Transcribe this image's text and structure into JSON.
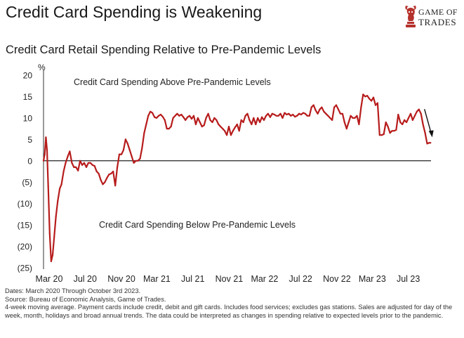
{
  "header": {
    "title": "Credit Card Spending is Weakening",
    "subtitle": "Credit Card Retail Spending Relative to Pre-Pandemic Levels"
  },
  "logo": {
    "line1": "GAME OF",
    "line2": "TRADES",
    "icon": "bull-chess-knight-icon",
    "color": "#b5312c"
  },
  "footnotes": {
    "line1": "Dates: March 2020 Through October 3rd 2023.",
    "line2": "Source: Bureau of Economic Analysis, Game of Trades.",
    "line3": "4-week moving average. Payment cards include credit, debit and gift cards. Includes food services; excludes gas stations. Sales are adjusted for day of the week, month, holidays and broad annual trends. The data could be interpreted as changes in spending relative to expected levels prior to the pandemic."
  },
  "chart_data": {
    "type": "line",
    "title": "Credit Card Retail Spending Relative to Pre-Pandemic Levels",
    "ylabel": "%",
    "xlabel": "",
    "ylim": [
      -25,
      20
    ],
    "xlim": [
      "2020-03-01",
      "2023-10-05"
    ],
    "y_ticks": [
      20,
      15,
      10,
      5,
      0,
      -5,
      -10,
      -15,
      -20,
      -25
    ],
    "y_tick_labels": [
      "20",
      "15",
      "10",
      "5",
      "0",
      "(5)",
      "(10)",
      "(15)",
      "(20)",
      "(25)"
    ],
    "x_tick_labels": [
      "Mar 20",
      "Jul 20",
      "Nov 20",
      "Mar 21",
      "Jul 21",
      "Nov 21",
      "Mar 22",
      "Jul 22",
      "Nov 22",
      "Mar 23",
      "Jul 23"
    ],
    "x_tick_dates": [
      "2020-03-01",
      "2020-07-01",
      "2020-11-01",
      "2021-03-01",
      "2021-07-01",
      "2021-11-01",
      "2022-03-01",
      "2022-07-01",
      "2022-11-01",
      "2023-03-01",
      "2023-07-01"
    ],
    "grid": false,
    "legend": "none",
    "line_color": "#b71c1c",
    "zero_line": true,
    "annotations": [
      {
        "text": "Credit Card Spending Above Pre-Pandemic Levels"
      },
      {
        "text": "Credit Card Spending Below Pre-Pandemic Levels"
      },
      {
        "text": "down-arrow",
        "date": "2023-09-20",
        "value": 5
      }
    ],
    "series": [
      {
        "x": [
          "2020-03-01",
          "2020-03-05",
          "2020-03-09",
          "2020-03-13",
          "2020-03-17",
          "2020-03-22",
          "2020-03-27",
          "2020-04-01",
          "2020-04-06",
          "2020-04-12",
          "2020-04-18",
          "2020-04-25",
          "2020-05-01",
          "2020-05-08",
          "2020-05-15",
          "2020-05-22",
          "2020-05-29",
          "2020-06-05",
          "2020-06-12",
          "2020-06-19",
          "2020-06-26",
          "2020-07-03",
          "2020-07-10",
          "2020-07-17",
          "2020-07-24",
          "2020-07-31",
          "2020-08-07",
          "2020-08-14",
          "2020-08-21",
          "2020-08-28",
          "2020-09-04",
          "2020-09-11",
          "2020-09-18",
          "2020-09-25",
          "2020-10-02",
          "2020-10-09",
          "2020-10-16",
          "2020-10-23",
          "2020-10-30",
          "2020-11-06",
          "2020-11-13",
          "2020-11-20",
          "2020-11-27",
          "2020-12-04",
          "2020-12-11",
          "2020-12-18",
          "2020-12-25",
          "2021-01-01",
          "2021-01-08",
          "2021-01-15",
          "2021-01-22",
          "2021-01-29",
          "2021-02-05",
          "2021-02-12",
          "2021-02-19",
          "2021-02-26",
          "2021-03-05",
          "2021-03-12",
          "2021-03-19",
          "2021-03-26",
          "2021-04-02",
          "2021-04-09",
          "2021-04-16",
          "2021-04-23",
          "2021-04-30",
          "2021-05-07",
          "2021-05-14",
          "2021-05-21",
          "2021-05-28",
          "2021-06-04",
          "2021-06-11",
          "2021-06-18",
          "2021-06-25",
          "2021-07-02",
          "2021-07-09",
          "2021-07-16",
          "2021-07-23",
          "2021-07-30",
          "2021-08-06",
          "2021-08-13",
          "2021-08-20",
          "2021-08-27",
          "2021-09-03",
          "2021-09-10",
          "2021-09-17",
          "2021-09-24",
          "2021-10-01",
          "2021-10-08",
          "2021-10-15",
          "2021-10-22",
          "2021-10-29",
          "2021-11-05",
          "2021-11-12",
          "2021-11-19",
          "2021-11-26",
          "2021-12-03",
          "2021-12-10",
          "2021-12-17",
          "2021-12-24",
          "2021-12-31",
          "2022-01-07",
          "2022-01-14",
          "2022-01-21",
          "2022-01-28",
          "2022-02-04",
          "2022-02-11",
          "2022-02-18",
          "2022-02-25",
          "2022-03-04",
          "2022-03-11",
          "2022-03-18",
          "2022-03-25",
          "2022-04-01",
          "2022-04-08",
          "2022-04-15",
          "2022-04-22",
          "2022-04-29",
          "2022-05-06",
          "2022-05-13",
          "2022-05-20",
          "2022-05-27",
          "2022-06-03",
          "2022-06-10",
          "2022-06-17",
          "2022-06-24",
          "2022-07-01",
          "2022-07-08",
          "2022-07-15",
          "2022-07-22",
          "2022-07-29",
          "2022-08-05",
          "2022-08-12",
          "2022-08-19",
          "2022-08-26",
          "2022-09-02",
          "2022-09-09",
          "2022-09-16",
          "2022-09-23",
          "2022-09-30",
          "2022-10-07",
          "2022-10-14",
          "2022-10-21",
          "2022-10-28",
          "2022-11-04",
          "2022-11-11",
          "2022-11-18",
          "2022-11-25",
          "2022-12-02",
          "2022-12-09",
          "2022-12-16",
          "2022-12-23",
          "2022-12-30",
          "2023-01-06",
          "2023-01-13",
          "2023-01-20",
          "2023-01-27",
          "2023-02-03",
          "2023-02-10",
          "2023-02-17",
          "2023-02-24",
          "2023-03-03",
          "2023-03-10",
          "2023-03-17",
          "2023-03-24",
          "2023-03-31",
          "2023-04-07",
          "2023-04-14",
          "2023-04-21",
          "2023-04-28",
          "2023-05-05",
          "2023-05-12",
          "2023-05-19",
          "2023-05-26",
          "2023-06-02",
          "2023-06-09",
          "2023-06-16",
          "2023-06-23",
          "2023-06-30",
          "2023-07-07",
          "2023-07-14",
          "2023-07-21",
          "2023-07-28",
          "2023-08-04",
          "2023-08-11",
          "2023-08-18",
          "2023-08-25",
          "2023-09-01",
          "2023-09-08",
          "2023-09-15",
          "2023-09-22",
          "2023-09-29",
          "2023-10-03"
        ],
        "values": [
          0,
          1.5,
          5.5,
          2.5,
          -6,
          -17,
          -23.5,
          -22,
          -18,
          -13,
          -9.5,
          -6.5,
          -5.5,
          -2.5,
          -0.5,
          1,
          2.2,
          -0.5,
          -1.5,
          -1.5,
          -2.3,
          0,
          -1,
          -0.5,
          -1.5,
          -0.5,
          -0.5,
          -1,
          -1.2,
          -2.5,
          -3,
          -4.5,
          -5.5,
          -5,
          -4,
          -3.2,
          -3,
          -2.5,
          -5.8,
          -1.5,
          1.5,
          1.5,
          2.5,
          5,
          4,
          2.5,
          1,
          -0.5,
          0,
          0,
          0.5,
          3,
          6.5,
          8.5,
          10.5,
          11.5,
          11.2,
          10.2,
          10,
          10.5,
          10.8,
          10.3,
          9.5,
          7.5,
          7.5,
          8,
          10,
          10.5,
          11,
          10.5,
          10.8,
          10.2,
          9.5,
          10.2,
          10.5,
          9.8,
          10.5,
          8.5,
          10,
          9,
          8,
          8.3,
          10,
          11,
          9.5,
          9,
          10,
          9.5,
          8.5,
          8,
          7.5,
          7,
          6,
          8,
          6,
          7,
          7.8,
          8.5,
          7,
          9.5,
          9,
          10.5,
          11,
          9.5,
          8.5,
          10,
          8.5,
          10,
          9,
          10.2,
          9.5,
          10.5,
          11,
          10.2,
          11,
          10.8,
          10.5,
          10.5,
          11,
          10,
          11.2,
          10.8,
          11,
          10.5,
          10.8,
          10.3,
          10.5,
          11,
          10.8,
          11.2,
          11,
          10.5,
          10.5,
          12.5,
          13,
          11.8,
          11,
          12,
          12.5,
          11.5,
          11,
          10.5,
          10,
          9.5,
          12.5,
          13,
          12,
          11,
          11,
          9,
          7.5,
          9,
          10.5,
          10,
          10,
          10.5,
          8.5,
          12.5,
          15.5,
          15,
          15.2,
          14.5,
          14,
          14.8,
          13,
          13.5,
          6,
          6,
          6.2,
          9,
          8,
          6.5,
          7,
          7,
          7.2,
          10.8,
          9,
          8.5,
          9.5,
          9,
          10,
          11,
          9.5,
          10.5,
          11.5,
          12,
          11,
          8.5,
          6.5,
          4,
          4.2,
          4.2
        ]
      }
    ]
  }
}
